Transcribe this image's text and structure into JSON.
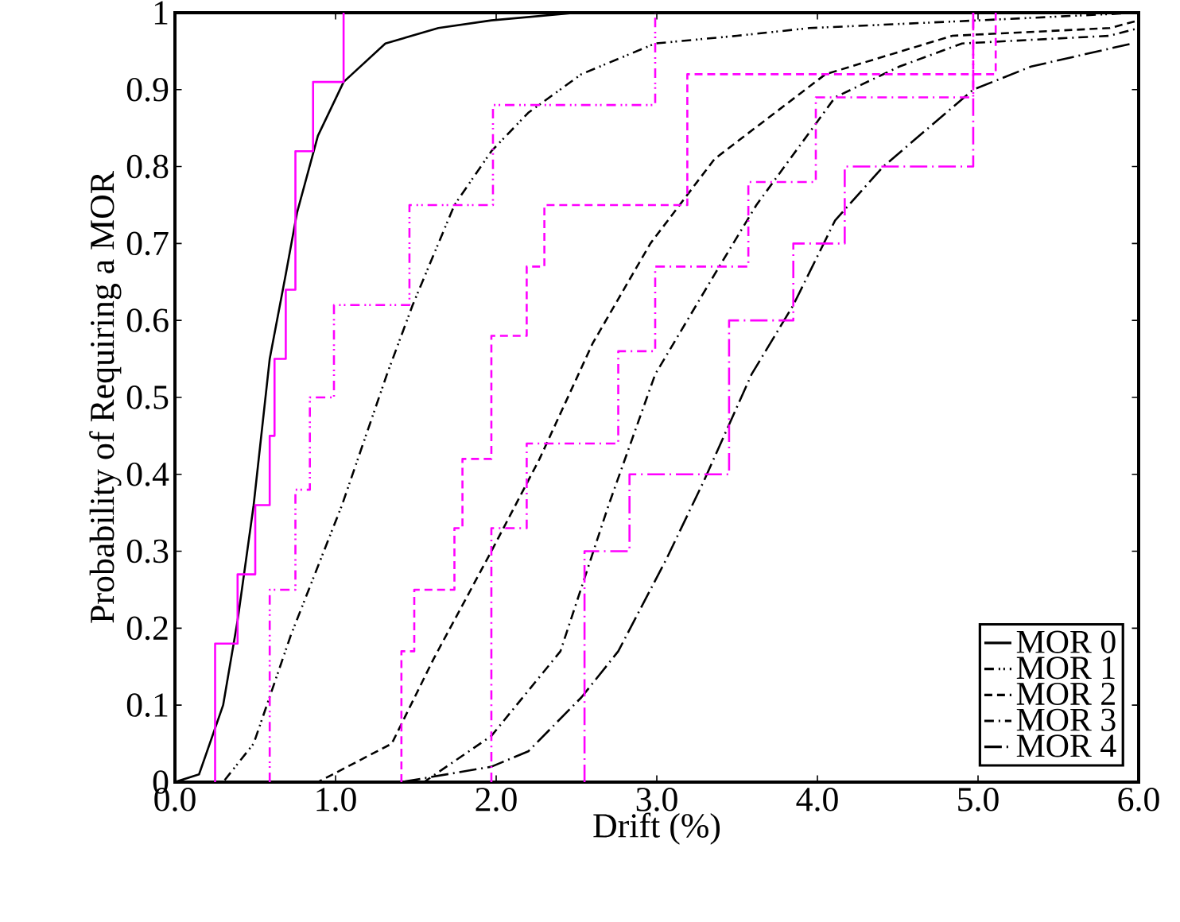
{
  "chart_data": {
    "type": "line",
    "xlabel": "Drift (%)",
    "ylabel": "Probability of Requiring a MOR",
    "xlim": [
      0,
      6
    ],
    "ylim": [
      0,
      1
    ],
    "xticks": [
      {
        "value": 0,
        "label": "0.0"
      },
      {
        "value": 1,
        "label": "1.0"
      },
      {
        "value": 2,
        "label": "2.0"
      },
      {
        "value": 3,
        "label": "3.0"
      },
      {
        "value": 4,
        "label": "4.0"
      },
      {
        "value": 5,
        "label": "5.0"
      },
      {
        "value": 6,
        "label": "6.0"
      }
    ],
    "yticks": [
      0,
      0.1,
      0.2,
      0.3,
      0.4,
      0.5,
      0.6,
      0.7,
      0.8,
      0.9,
      1
    ],
    "grid": false,
    "legend": "bottom right",
    "marker": "none",
    "series": [
      {
        "name": "MOR 0",
        "color": "#000000",
        "line_style": "solid",
        "x": [
          0,
          0.15,
          0.3,
          0.39,
          0.49,
          0.59,
          0.69,
          0.76,
          0.89,
          1.05,
          1.31,
          1.64,
          1.97,
          2.5,
          6
        ],
        "values": [
          0,
          0.01,
          0.1,
          0.21,
          0.36,
          0.55,
          0.66,
          0.74,
          0.84,
          0.91,
          0.96,
          0.98,
          0.99,
          1.0,
          1.0
        ]
      },
      {
        "name": "MOR 1",
        "color": "#000000",
        "line_style": "dashdotdotted",
        "x": [
          0,
          0.3,
          0.49,
          0.72,
          1.04,
          1.32,
          1.48,
          1.74,
          1.97,
          2.2,
          2.53,
          2.99,
          3.5,
          3.95,
          5,
          6
        ],
        "values": [
          0,
          0,
          0.05,
          0.19,
          0.36,
          0.53,
          0.62,
          0.75,
          0.82,
          0.87,
          0.92,
          0.96,
          0.97,
          0.98,
          0.99,
          1.0
        ]
      },
      {
        "name": "MOR 2",
        "color": "#000000",
        "line_style": "dashed",
        "x": [
          0,
          0.89,
          1.35,
          1.61,
          1.97,
          2.27,
          2.6,
          2.96,
          3.36,
          4.05,
          4.84,
          5.82,
          6
        ],
        "values": [
          0,
          0,
          0.05,
          0.16,
          0.3,
          0.42,
          0.57,
          0.7,
          0.81,
          0.92,
          0.97,
          0.98,
          0.99
        ]
      },
      {
        "name": "MOR 3",
        "color": "#000000",
        "line_style": "dashdotted",
        "x": [
          0,
          1.55,
          1.97,
          2.4,
          2.7,
          2.99,
          3.36,
          3.62,
          4.11,
          4.51,
          4.9,
          5.82,
          6
        ],
        "values": [
          0,
          0,
          0.06,
          0.17,
          0.36,
          0.53,
          0.66,
          0.75,
          0.89,
          0.93,
          0.96,
          0.97,
          0.98
        ]
      },
      {
        "name": "MOR 4",
        "color": "#000000",
        "line_style": "longdashdotted",
        "x": [
          0,
          1.41,
          1.97,
          2.2,
          2.53,
          2.76,
          3.06,
          3.29,
          3.59,
          3.85,
          4.11,
          4.41,
          4.97,
          5.33,
          5.96
        ],
        "values": [
          0,
          0,
          0.02,
          0.04,
          0.11,
          0.17,
          0.29,
          0.39,
          0.53,
          0.62,
          0.73,
          0.8,
          0.9,
          0.93,
          0.96
        ]
      },
      {
        "type": "step",
        "color": "#ff00ff",
        "line_style": "solid",
        "x": [
          0.25,
          0.25,
          0.39,
          0.5,
          0.59,
          0.62,
          0.69,
          0.75,
          0.86,
          1.05
        ],
        "values": [
          0,
          0.18,
          0.27,
          0.36,
          0.45,
          0.55,
          0.64,
          0.82,
          0.91,
          1.0
        ]
      },
      {
        "type": "step",
        "color": "#ff00ff",
        "line_style": "dashdotdotted",
        "x": [
          0.59,
          0.59,
          0.75,
          0.84,
          0.99,
          1.46,
          1.98,
          2.99
        ],
        "values": [
          0,
          0.25,
          0.38,
          0.5,
          0.62,
          0.75,
          0.88,
          1.0
        ]
      },
      {
        "type": "step",
        "color": "#ff00ff",
        "line_style": "dashed",
        "x": [
          1.41,
          1.41,
          1.49,
          1.74,
          1.79,
          1.97,
          2.19,
          2.3,
          3.19,
          5.11
        ],
        "values": [
          0,
          0.17,
          0.25,
          0.33,
          0.42,
          0.58,
          0.67,
          0.75,
          0.92,
          1.0
        ]
      },
      {
        "type": "step",
        "color": "#ff00ff",
        "line_style": "dashdotted",
        "x": [
          1.97,
          1.97,
          2.19,
          2.76,
          2.99,
          3.57,
          3.99,
          4.97
        ],
        "values": [
          0,
          0.33,
          0.44,
          0.56,
          0.67,
          0.78,
          0.89,
          1.0
        ]
      },
      {
        "type": "step",
        "color": "#ff00ff",
        "line_style": "longdashdotted",
        "x": [
          2.55,
          2.55,
          2.83,
          3.45,
          3.85,
          4.17,
          4.97
        ],
        "values": [
          0,
          0.3,
          0.4,
          0.6,
          0.7,
          0.8,
          1.0
        ]
      }
    ]
  }
}
